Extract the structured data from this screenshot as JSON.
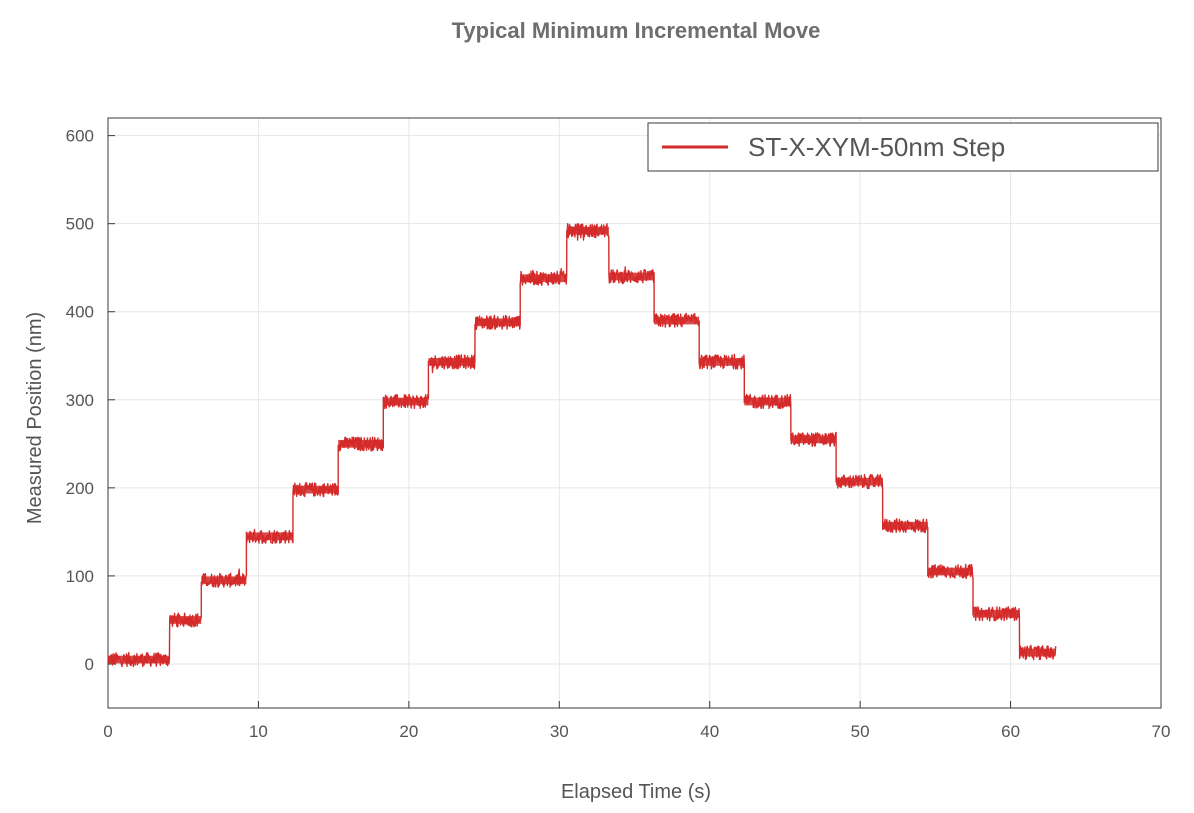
{
  "chart_data": {
    "type": "line",
    "title": "Typical Minimum Incremental Move",
    "xlabel": "Elapsed Time (s)",
    "ylabel": "Measured Position (nm)",
    "xlim": [
      0,
      70
    ],
    "ylim": [
      -50,
      620
    ],
    "xticks": [
      0,
      10,
      20,
      30,
      40,
      50,
      60,
      70
    ],
    "yticks": [
      0,
      100,
      200,
      300,
      400,
      500,
      600
    ],
    "grid": true,
    "legend_position": "top-right",
    "series": [
      {
        "name": "ST-X-XYM-50nm Step",
        "color": "#d42a2a",
        "noise_amplitude_nm": 8,
        "steps": [
          {
            "t_start": 0,
            "t_end": 4.1,
            "position": 5
          },
          {
            "t_start": 4.1,
            "t_end": 6.2,
            "position": 50
          },
          {
            "t_start": 6.2,
            "t_end": 9.2,
            "position": 95
          },
          {
            "t_start": 9.2,
            "t_end": 12.3,
            "position": 145
          },
          {
            "t_start": 12.3,
            "t_end": 15.3,
            "position": 198
          },
          {
            "t_start": 15.3,
            "t_end": 18.3,
            "position": 250
          },
          {
            "t_start": 18.3,
            "t_end": 21.3,
            "position": 298
          },
          {
            "t_start": 21.3,
            "t_end": 24.4,
            "position": 343
          },
          {
            "t_start": 24.4,
            "t_end": 27.4,
            "position": 388
          },
          {
            "t_start": 27.4,
            "t_end": 30.5,
            "position": 438
          },
          {
            "t_start": 30.5,
            "t_end": 33.3,
            "position": 492
          },
          {
            "t_start": 33.3,
            "t_end": 36.3,
            "position": 440
          },
          {
            "t_start": 36.3,
            "t_end": 39.3,
            "position": 390
          },
          {
            "t_start": 39.3,
            "t_end": 42.3,
            "position": 343
          },
          {
            "t_start": 42.3,
            "t_end": 45.4,
            "position": 298
          },
          {
            "t_start": 45.4,
            "t_end": 48.4,
            "position": 255
          },
          {
            "t_start": 48.4,
            "t_end": 51.5,
            "position": 207
          },
          {
            "t_start": 51.5,
            "t_end": 54.5,
            "position": 157
          },
          {
            "t_start": 54.5,
            "t_end": 57.5,
            "position": 105
          },
          {
            "t_start": 57.5,
            "t_end": 60.6,
            "position": 57
          },
          {
            "t_start": 60.6,
            "t_end": 63.0,
            "position": 13
          }
        ]
      }
    ]
  }
}
